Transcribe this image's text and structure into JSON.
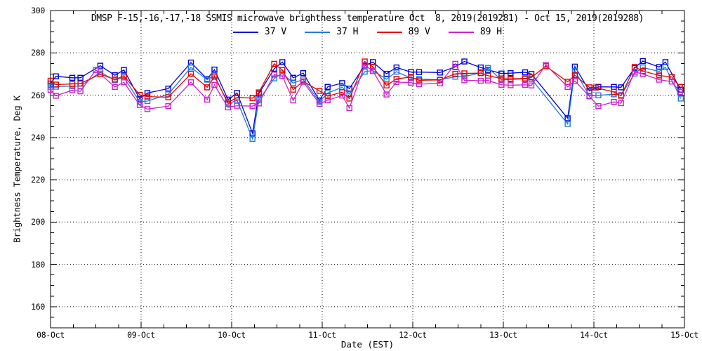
{
  "chart_data": {
    "type": "line",
    "title": "DMSP F-15,-16,-17,-18 SSMIS microwave brightness temperature Oct  8, 2019(2019281) - Oct 15, 2019(2019288)",
    "xlabel": "Date (EST)",
    "ylabel": "Brightness Temperature, Deg K",
    "background": "#ffffff",
    "axis_color": "#000000",
    "grid_style": "dotted lines at labeled major ticks",
    "legend_position": "top center, inside plot below title",
    "xlim_days": [
      0,
      7
    ],
    "x_tick_days": [
      0,
      1,
      2,
      3,
      4,
      5,
      6,
      7
    ],
    "x_tick_labels": [
      "08-Oct",
      "09-Oct",
      "10-Oct",
      "11-Oct",
      "12-Oct",
      "13-Oct",
      "14-Oct",
      "15-Oct"
    ],
    "x_minor_step_days": 0.25,
    "ylim": [
      150,
      300
    ],
    "y_ticks": [
      160,
      180,
      200,
      220,
      240,
      260,
      280,
      300
    ],
    "y_minor_step": 5,
    "series": [
      {
        "name": "37 V",
        "color": "#0000dd",
        "points": [
          [
            0.0,
            265.5
          ],
          [
            0.06,
            268.9
          ],
          [
            0.24,
            268.2
          ],
          [
            0.33,
            268.2
          ],
          [
            0.55,
            273.9
          ],
          [
            0.71,
            269.4
          ],
          [
            0.81,
            271.9
          ],
          [
            0.985,
            258.3
          ],
          [
            1.07,
            261.0
          ],
          [
            1.3,
            263.1
          ],
          [
            1.55,
            275.4
          ],
          [
            1.73,
            267.6
          ],
          [
            1.81,
            272.1
          ],
          [
            1.96,
            257.9
          ],
          [
            2.06,
            261.0
          ],
          [
            2.23,
            242.0
          ],
          [
            2.3,
            260.7
          ],
          [
            2.47,
            272.5
          ],
          [
            2.56,
            275.6
          ],
          [
            2.68,
            268.2
          ],
          [
            2.79,
            270.4
          ],
          [
            2.97,
            257.5
          ],
          [
            3.06,
            263.9
          ],
          [
            3.22,
            265.7
          ],
          [
            3.3,
            263.1
          ],
          [
            3.47,
            274.0
          ],
          [
            3.56,
            275.6
          ],
          [
            3.71,
            270.1
          ],
          [
            3.82,
            273.1
          ],
          [
            3.98,
            270.9
          ],
          [
            4.07,
            270.9
          ],
          [
            4.3,
            270.7
          ],
          [
            4.47,
            273.4
          ],
          [
            4.57,
            275.9
          ],
          [
            4.75,
            273.1
          ],
          [
            4.83,
            272.0
          ],
          [
            4.98,
            270.2
          ],
          [
            5.08,
            270.4
          ],
          [
            5.24,
            270.8
          ],
          [
            5.31,
            270.0
          ],
          [
            5.71,
            249.1
          ],
          [
            5.79,
            273.5
          ],
          [
            5.95,
            262.0
          ],
          [
            6.05,
            263.9
          ],
          [
            6.22,
            263.9
          ],
          [
            6.3,
            263.7
          ],
          [
            6.45,
            272.9
          ],
          [
            6.54,
            276.1
          ],
          [
            6.72,
            273.3
          ],
          [
            6.79,
            275.6
          ],
          [
            6.96,
            262.6
          ]
        ]
      },
      {
        "name": "37 H",
        "color": "#2079e5",
        "points": [
          [
            0.0,
            264.0
          ],
          [
            0.06,
            264.0
          ],
          [
            0.24,
            264.3
          ],
          [
            0.33,
            264.3
          ],
          [
            0.55,
            270.8
          ],
          [
            0.71,
            267.1
          ],
          [
            0.81,
            268.4
          ],
          [
            0.985,
            256.8
          ],
          [
            1.07,
            257.2
          ],
          [
            1.3,
            260.4
          ],
          [
            1.55,
            273.1
          ],
          [
            1.73,
            267.3
          ],
          [
            1.81,
            269.3
          ],
          [
            1.96,
            255.9
          ],
          [
            2.06,
            257.5
          ],
          [
            2.23,
            239.3
          ],
          [
            2.3,
            257.7
          ],
          [
            2.47,
            267.9
          ],
          [
            2.56,
            270.3
          ],
          [
            2.68,
            265.7
          ],
          [
            2.79,
            267.4
          ],
          [
            2.97,
            256.9
          ],
          [
            3.06,
            261.0
          ],
          [
            3.22,
            263.7
          ],
          [
            3.3,
            260.4
          ],
          [
            3.47,
            271.1
          ],
          [
            3.56,
            271.6
          ],
          [
            3.71,
            267.5
          ],
          [
            3.82,
            271.1
          ],
          [
            3.98,
            268.0
          ],
          [
            4.07,
            267.6
          ],
          [
            4.3,
            267.3
          ],
          [
            4.47,
            268.7
          ],
          [
            4.57,
            268.8
          ],
          [
            4.75,
            270.5
          ],
          [
            4.83,
            272.9
          ],
          [
            4.98,
            267.2
          ],
          [
            5.08,
            267.4
          ],
          [
            5.24,
            267.7
          ],
          [
            5.31,
            267.6
          ],
          [
            5.71,
            246.4
          ],
          [
            5.79,
            271.5
          ],
          [
            5.95,
            259.7
          ],
          [
            6.05,
            259.9
          ],
          [
            6.22,
            260.4
          ],
          [
            6.3,
            260.0
          ],
          [
            6.45,
            270.2
          ],
          [
            6.54,
            273.1
          ],
          [
            6.72,
            271.2
          ],
          [
            6.79,
            273.2
          ],
          [
            6.96,
            258.4
          ]
        ]
      },
      {
        "name": "89 V",
        "color": "#e60000",
        "points": [
          [
            0.0,
            266.8
          ],
          [
            0.06,
            265.0
          ],
          [
            0.24,
            265.3
          ],
          [
            0.33,
            265.5
          ],
          [
            0.55,
            269.9
          ],
          [
            0.71,
            267.4
          ],
          [
            0.81,
            269.1
          ],
          [
            0.985,
            260.1
          ],
          [
            1.07,
            259.3
          ],
          [
            1.3,
            259.0
          ],
          [
            1.55,
            270.1
          ],
          [
            1.73,
            263.7
          ],
          [
            1.81,
            268.7
          ],
          [
            1.96,
            256.5
          ],
          [
            2.06,
            258.9
          ],
          [
            2.23,
            258.6
          ],
          [
            2.3,
            261.3
          ],
          [
            2.47,
            274.8
          ],
          [
            2.56,
            271.9
          ],
          [
            2.68,
            262.6
          ],
          [
            2.79,
            266.5
          ],
          [
            2.97,
            262.0
          ],
          [
            3.06,
            259.5
          ],
          [
            3.22,
            261.4
          ],
          [
            3.3,
            258.4
          ],
          [
            3.47,
            275.9
          ],
          [
            3.56,
            273.4
          ],
          [
            3.71,
            264.6
          ],
          [
            3.82,
            267.7
          ],
          [
            3.98,
            268.5
          ],
          [
            4.07,
            267.0
          ],
          [
            4.3,
            267.2
          ],
          [
            4.47,
            270.1
          ],
          [
            4.57,
            270.3
          ],
          [
            4.75,
            270.4
          ],
          [
            4.83,
            269.2
          ],
          [
            4.98,
            267.8
          ],
          [
            5.08,
            267.7
          ],
          [
            5.24,
            267.9
          ],
          [
            5.31,
            268.4
          ],
          [
            5.47,
            273.7
          ],
          [
            5.71,
            266.3
          ],
          [
            5.79,
            269.4
          ],
          [
            5.95,
            263.7
          ],
          [
            6.02,
            263.6
          ],
          [
            6.22,
            261.5
          ],
          [
            6.3,
            259.7
          ],
          [
            6.45,
            273.3
          ],
          [
            6.54,
            271.4
          ],
          [
            6.72,
            269.3
          ],
          [
            6.86,
            268.6
          ],
          [
            6.95,
            263.9
          ]
        ]
      },
      {
        "name": "89 H",
        "color": "#cc22cc",
        "points": [
          [
            0.0,
            262.5
          ],
          [
            0.06,
            259.7
          ],
          [
            0.24,
            262.3
          ],
          [
            0.33,
            261.8
          ],
          [
            0.5,
            271.9
          ],
          [
            0.71,
            263.9
          ],
          [
            0.81,
            266.1
          ],
          [
            0.985,
            255.3
          ],
          [
            1.07,
            253.4
          ],
          [
            1.3,
            254.8
          ],
          [
            1.55,
            266.1
          ],
          [
            1.73,
            257.9
          ],
          [
            1.81,
            264.8
          ],
          [
            1.96,
            254.2
          ],
          [
            2.06,
            255.0
          ],
          [
            2.23,
            254.8
          ],
          [
            2.3,
            256.1
          ],
          [
            2.47,
            269.7
          ],
          [
            2.56,
            269.0
          ],
          [
            2.68,
            257.5
          ],
          [
            2.79,
            266.3
          ],
          [
            2.97,
            255.9
          ],
          [
            3.06,
            257.6
          ],
          [
            3.22,
            259.8
          ],
          [
            3.3,
            253.9
          ],
          [
            3.47,
            274.2
          ],
          [
            3.56,
            271.4
          ],
          [
            3.71,
            260.3
          ],
          [
            3.82,
            266.2
          ],
          [
            3.98,
            265.9
          ],
          [
            4.07,
            265.2
          ],
          [
            4.3,
            265.6
          ],
          [
            4.47,
            274.8
          ],
          [
            4.57,
            267.0
          ],
          [
            4.75,
            266.8
          ],
          [
            4.83,
            266.9
          ],
          [
            4.98,
            264.9
          ],
          [
            5.08,
            264.7
          ],
          [
            5.24,
            264.9
          ],
          [
            5.31,
            264.6
          ],
          [
            5.47,
            274.3
          ],
          [
            5.71,
            263.9
          ],
          [
            5.79,
            266.7
          ],
          [
            5.95,
            259.4
          ],
          [
            6.05,
            254.8
          ],
          [
            6.22,
            256.8
          ],
          [
            6.3,
            256.2
          ],
          [
            6.45,
            271.0
          ],
          [
            6.54,
            270.0
          ],
          [
            6.72,
            267.3
          ],
          [
            6.86,
            266.4
          ],
          [
            6.95,
            261.5
          ]
        ]
      }
    ]
  }
}
